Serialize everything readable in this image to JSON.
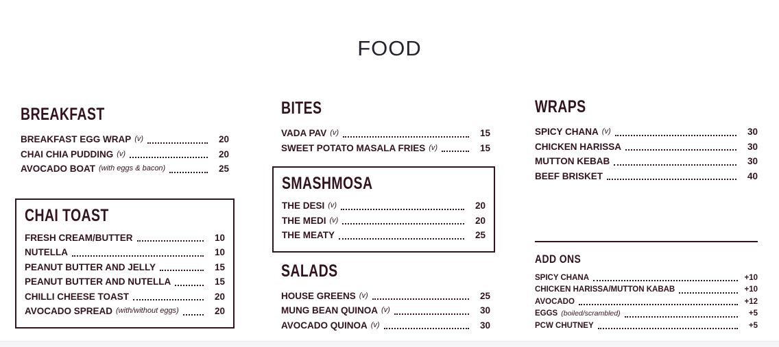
{
  "title": "FOOD",
  "colors": {
    "menu_text": "#33121f",
    "title_text": "#24242e",
    "page_background": "#ffffff",
    "bottom_strip": "#f6f6f8"
  },
  "columns": [
    {
      "sections": [
        {
          "key": "breakfast",
          "heading": "BREAKFAST",
          "boxed": false,
          "items": [
            {
              "name": "BREAKFAST EGG WRAP",
              "note": "(v)",
              "price": "20"
            },
            {
              "name": "CHAI CHIA PUDDING",
              "note": "(v)",
              "price": "20"
            },
            {
              "name": "AVOCADO BOAT",
              "note": "(with eggs & bacon)",
              "price": "25"
            }
          ]
        },
        {
          "key": "chai-toast",
          "heading": "CHAI TOAST",
          "boxed": true,
          "items": [
            {
              "name": "FRESH CREAM/BUTTER",
              "price": "10"
            },
            {
              "name": "NUTELLA",
              "price": "10"
            },
            {
              "name": "PEANUT BUTTER AND JELLY",
              "price": "15"
            },
            {
              "name": "PEANUT BUTTER AND NUTELLA",
              "price": "15"
            },
            {
              "name": "CHILLI CHEESE TOAST",
              "price": "20"
            },
            {
              "name": "AVOCADO SPREAD",
              "note": "(with/without eggs)",
              "price": "20"
            }
          ]
        }
      ]
    },
    {
      "sections": [
        {
          "key": "bites",
          "heading": "BITES",
          "boxed": false,
          "items": [
            {
              "name": "VADA PAV",
              "note": "(v)",
              "price": "15"
            },
            {
              "name": "SWEET POTATO MASALA FRIES",
              "note": "(v)",
              "price": "15"
            }
          ]
        },
        {
          "key": "smashmosa",
          "heading": "SMASHMOSA",
          "boxed": true,
          "items": [
            {
              "name": "THE DESI",
              "note": "(v)",
              "price": "20"
            },
            {
              "name": "THE MEDI",
              "note": "(v)",
              "price": "20"
            },
            {
              "name": "THE MEATY",
              "price": "25"
            }
          ]
        },
        {
          "key": "salads",
          "heading": "SALADS",
          "boxed": false,
          "items": [
            {
              "name": "HOUSE GREENS",
              "note": "(v)",
              "price": "25"
            },
            {
              "name": "MUNG BEAN QUINOA",
              "note": "(v)",
              "price": "30"
            },
            {
              "name": "AVOCADO QUINOA",
              "note": "(v)",
              "price": "30"
            }
          ]
        }
      ]
    },
    {
      "sections": [
        {
          "key": "wraps",
          "heading": "WRAPS",
          "boxed": false,
          "items": [
            {
              "name": "SPICY CHANA",
              "note": "(v)",
              "price": "30"
            },
            {
              "name": "CHICKEN HARISSA",
              "price": "30"
            },
            {
              "name": "MUTTON KEBAB",
              "price": "30"
            },
            {
              "name": "BEEF BRISKET",
              "price": "40"
            }
          ]
        },
        {
          "key": "add-ons",
          "heading": "ADD ONS",
          "boxed": false,
          "small": true,
          "divider_above": true,
          "items": [
            {
              "name": "SPICY CHANA",
              "price": "+10"
            },
            {
              "name": "CHICKEN HARISSA/MUTTON KABAB",
              "price": "+10"
            },
            {
              "name": "AVOCADO",
              "price": "+12"
            },
            {
              "name": "EGGS",
              "note": "(boiled/scrambled)",
              "price": "+5"
            },
            {
              "name": "PCW CHUTNEY",
              "price": "+5"
            }
          ]
        }
      ]
    }
  ]
}
